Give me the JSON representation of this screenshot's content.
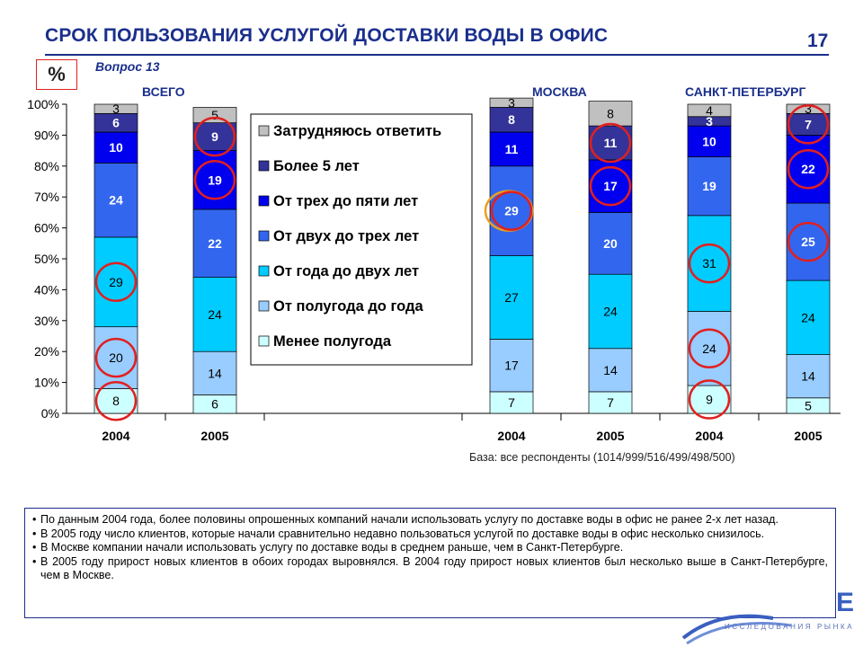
{
  "header": {
    "title": "СРОК ПОЛЬЗОВАНИЯ УСЛУГОЙ ДОСТАВКИ ВОДЫ В ОФИС",
    "page_number": "17",
    "unit_badge": "%",
    "question": "Вопрос 13"
  },
  "groups": [
    "ВСЕГО",
    "МОСКВА",
    "САНКТ-ПЕТЕРБУРГ"
  ],
  "base_note": "База: все респонденты (1014/999/516/499/498/500)",
  "notes": [
    "По данным 2004 года, более половины опрошенных компаний начали использовать услугу по доставке воды в офис не ранее 2-х лет назад.",
    "В 2005 году число клиентов, которые начали сравнительно недавно пользоваться услугой по доставке воды в офис несколько снизилось.",
    "В Москве компании начали использовать услугу по доставке воды в среднем раньше, чем в Санкт-Петербурге.",
    "В 2005 году прирост новых клиентов в обоих городах выровнялся. В 2004 году прирост новых клиентов был несколько выше в Санкт-Петербурге, чем в Москве."
  ],
  "logo": {
    "text": "ИССЛЕДОВАНИЯ РЫНКА",
    "partial_text": "Е"
  },
  "colors": {
    "title": "#1a2f8c",
    "highlight_circle": "#e02020",
    "highlight_circle_alt": "#e8a020"
  },
  "chart_data": {
    "type": "bar",
    "stacked": true,
    "percent_stacked": true,
    "categories": [
      "2004",
      "2005",
      "2004",
      "2005",
      "2004",
      "2005"
    ],
    "category_groups": [
      "ВСЕГО",
      "ВСЕГО",
      "МОСКВА",
      "МОСКВА",
      "САНКТ-ПЕТЕРБУРГ",
      "САНКТ-ПЕТЕРБУРГ"
    ],
    "ylim": [
      0,
      100
    ],
    "yticks": [
      "0%",
      "10%",
      "20%",
      "30%",
      "40%",
      "50%",
      "60%",
      "70%",
      "80%",
      "90%",
      "100%"
    ],
    "legend_placement": "center (between ВСЕГО and МОСКВА)",
    "series": [
      {
        "name": "Менее полугода",
        "color": "#ccffff",
        "values": [
          8,
          6,
          7,
          7,
          9,
          5
        ]
      },
      {
        "name": "От полугода до года",
        "color": "#99ccff",
        "values": [
          20,
          14,
          17,
          14,
          24,
          14
        ]
      },
      {
        "name": "От года до двух лет",
        "color": "#00ccff",
        "values": [
          29,
          24,
          27,
          24,
          31,
          24
        ]
      },
      {
        "name": "От двух до трех лет",
        "color": "#3366ee",
        "values": [
          24,
          22,
          29,
          20,
          19,
          25
        ]
      },
      {
        "name": "От трех до пяти лет",
        "color": "#0000ee",
        "values": [
          10,
          19,
          11,
          17,
          10,
          22
        ]
      },
      {
        "name": "Более 5 лет",
        "color": "#333399",
        "values": [
          6,
          9,
          8,
          11,
          3,
          7
        ]
      },
      {
        "name": "Затрудняюсь ответить",
        "color": "#c0c0c0",
        "values": [
          3,
          5,
          3,
          8,
          4,
          3
        ]
      }
    ],
    "highlighted": [
      {
        "category_index": 0,
        "series": "Менее полугода"
      },
      {
        "category_index": 0,
        "series": "От полугода до года"
      },
      {
        "category_index": 0,
        "series": "От года до двух лет"
      },
      {
        "category_index": 1,
        "series": "От трех до пяти лет"
      },
      {
        "category_index": 1,
        "series": "Более 5 лет"
      },
      {
        "category_index": 2,
        "series": "От двух до трех лет",
        "alt": true
      },
      {
        "category_index": 3,
        "series": "От трех до пяти лет"
      },
      {
        "category_index": 3,
        "series": "Более 5 лет"
      },
      {
        "category_index": 4,
        "series": "Менее полугода"
      },
      {
        "category_index": 4,
        "series": "От полугода до года"
      },
      {
        "category_index": 4,
        "series": "От года до двух лет"
      },
      {
        "category_index": 5,
        "series": "От двух до трех лет"
      },
      {
        "category_index": 5,
        "series": "От трех до пяти лет"
      },
      {
        "category_index": 5,
        "series": "Более 5 лет"
      }
    ]
  }
}
